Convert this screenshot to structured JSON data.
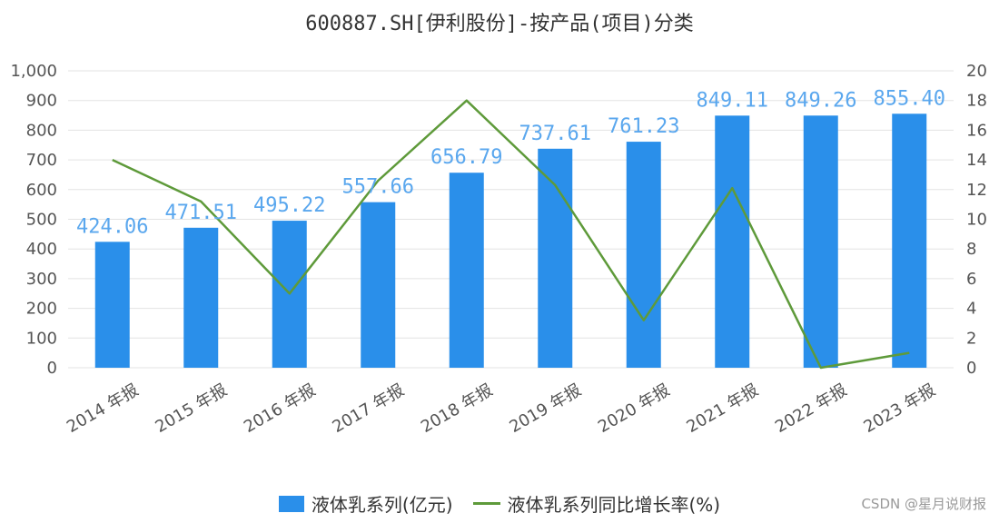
{
  "title": "600887.SH[伊利股份]-按产品(项目)分类",
  "watermark": "CSDN @星月说财报",
  "colors": {
    "bar": "#2a8fea",
    "line": "#5e9a3a",
    "grid": "#e3e3e3",
    "label": "#5aa7ee"
  },
  "chart_data": {
    "type": "bar",
    "categories": [
      "2014 年报",
      "2015 年报",
      "2016 年报",
      "2017 年报",
      "2018 年报",
      "2019 年报",
      "2020 年报",
      "2021 年报",
      "2022 年报",
      "2023 年报"
    ],
    "series": [
      {
        "name": "液体乳系列(亿元)",
        "type": "bar",
        "axis": "left",
        "values": [
          424.06,
          471.51,
          495.22,
          557.66,
          656.79,
          737.61,
          761.23,
          849.11,
          849.26,
          855.4
        ],
        "labels": [
          "424.06",
          "471.51",
          "495.22",
          "557.66",
          "656.79",
          "737.61",
          "761.23",
          "849.11",
          "849.26",
          "855.40"
        ]
      },
      {
        "name": "液体乳系列同比增长率(%)",
        "type": "line",
        "axis": "right",
        "values": [
          14.0,
          11.2,
          5.0,
          12.6,
          18.0,
          12.3,
          3.2,
          12.1,
          0.0,
          1.0
        ]
      }
    ],
    "y_left": {
      "min": 0,
      "max": 1000,
      "step": 100,
      "ticks": [
        "0",
        "100",
        "200",
        "300",
        "400",
        "500",
        "600",
        "700",
        "800",
        "900",
        "1,000"
      ]
    },
    "y_right": {
      "min": 0,
      "max": 20,
      "step": 2,
      "ticks": [
        "0",
        "2",
        "4",
        "6",
        "8",
        "10",
        "12",
        "14",
        "16",
        "18",
        "20"
      ]
    },
    "grid": true,
    "legend_position": "bottom"
  }
}
